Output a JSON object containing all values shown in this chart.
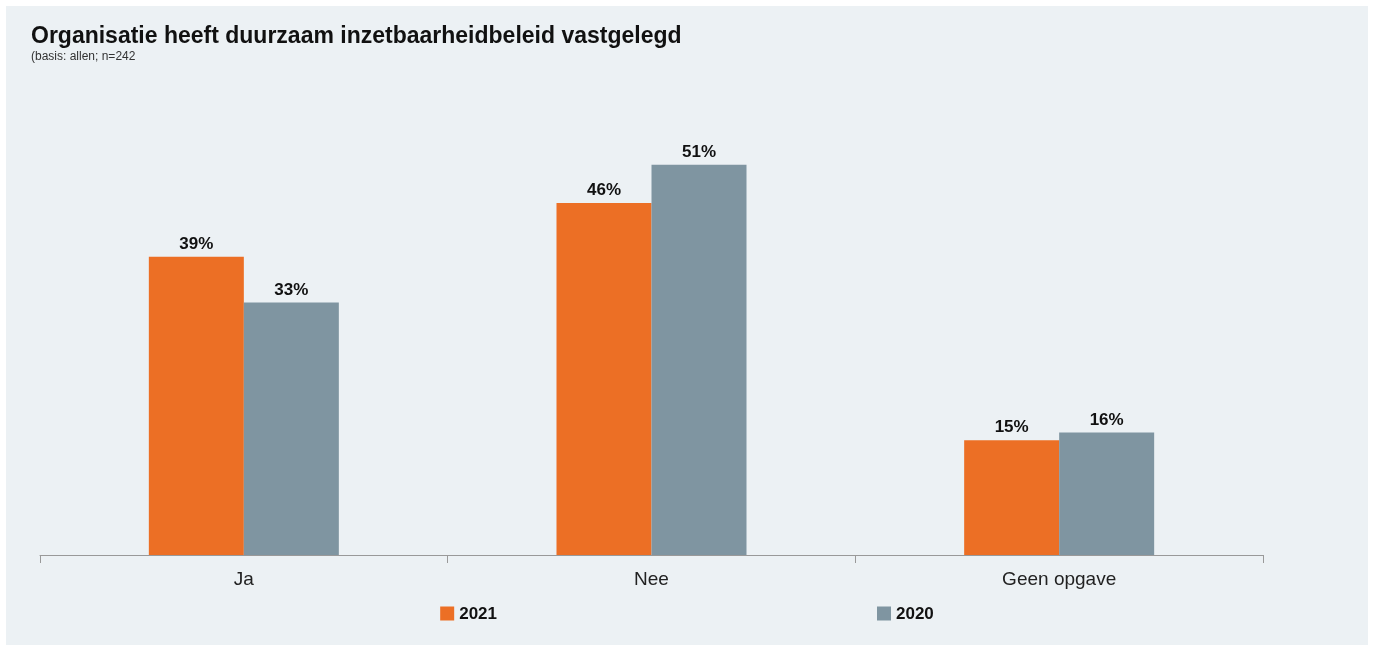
{
  "chart_data": {
    "type": "bar",
    "title": "Organisatie heeft duurzaam inzetbaarheidbeleid vastgelegd",
    "subtitle": "(basis: allen; n=242",
    "categories": [
      "Ja",
      "Nee",
      "Geen opgave"
    ],
    "legend": "bottom",
    "series": [
      {
        "name": "2021",
        "color": "#ec6f25",
        "values": [
          39,
          46,
          15
        ],
        "value_labels": [
          "39%",
          "46%",
          "15%"
        ]
      },
      {
        "name": "2020",
        "color": "#7f95a1",
        "values": [
          33,
          51,
          16
        ],
        "value_labels": [
          "33%",
          "51%",
          "16%"
        ]
      }
    ]
  }
}
